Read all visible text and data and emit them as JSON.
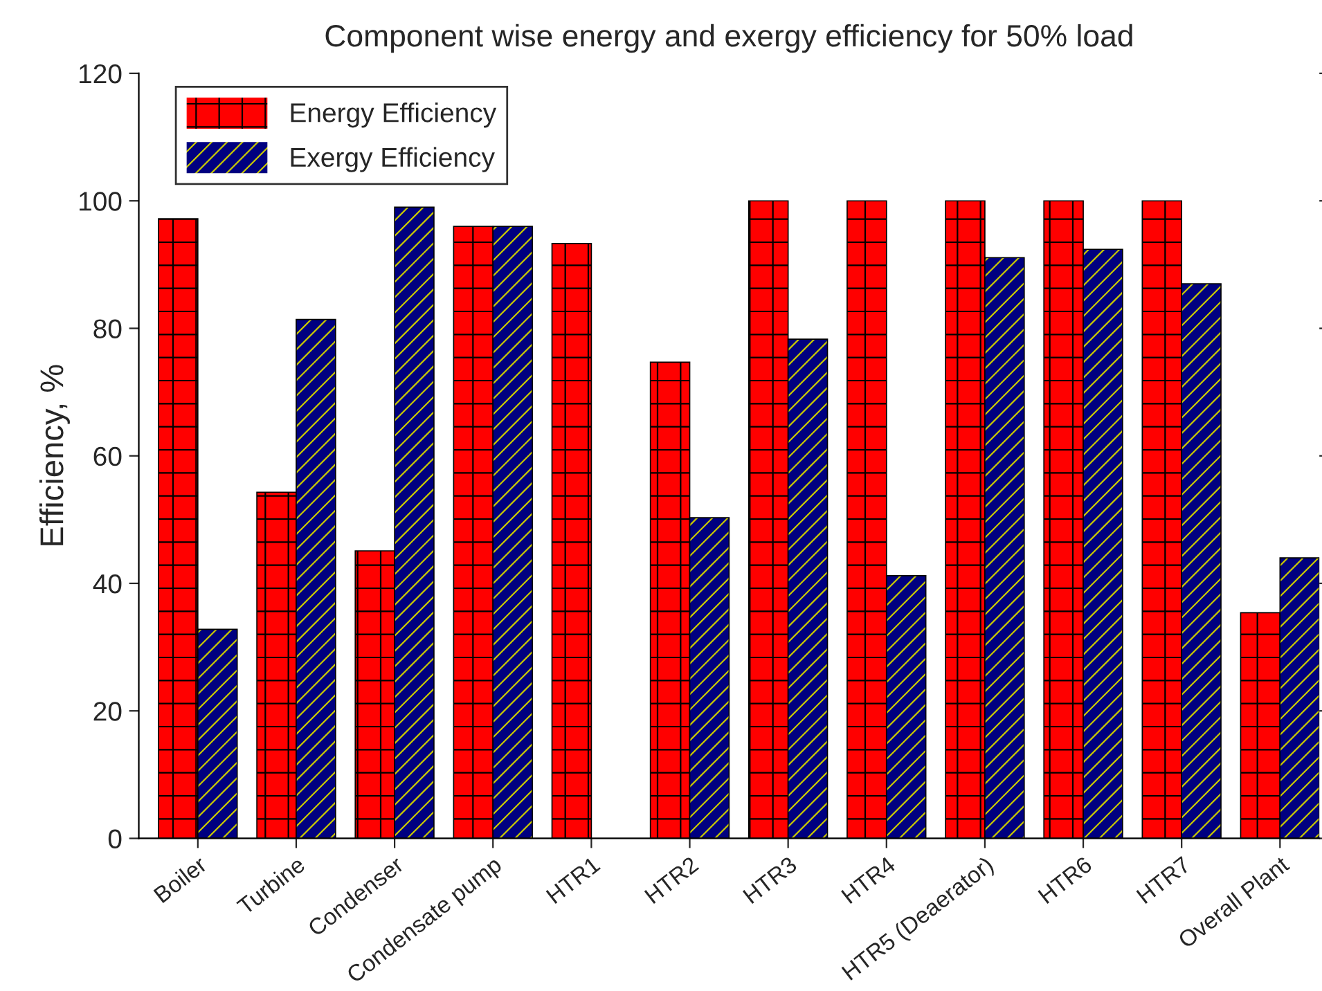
{
  "chart_data": {
    "type": "bar",
    "title": "Component wise energy and exergy efficiency for 50% load",
    "ylabel": "Efficiency, %",
    "categories": [
      "Boiler",
      "Turbine",
      "Condenser",
      "Condensate pump",
      "HTR1",
      "HTR2",
      "HTR3",
      "HTR4",
      "HTR5 (Deaerator)",
      "HTR6",
      "HTR7",
      "Overall Plant"
    ],
    "series": [
      {
        "name": "Energy Efficiency",
        "color": "#ff0000",
        "values": [
          97.2,
          54.3,
          45.1,
          96,
          93.3,
          74.7,
          100,
          100,
          100,
          100,
          100,
          35.4
        ]
      },
      {
        "name": "Exergy Efficiency",
        "color": "#000080",
        "values": [
          32.8,
          81.4,
          99,
          96,
          null,
          50.3,
          78.3,
          41.2,
          91.1,
          92.4,
          87,
          44
        ]
      }
    ],
    "ylim": [
      0,
      120
    ],
    "yticks": [
      0,
      20,
      40,
      60,
      80,
      100,
      120
    ],
    "legend": "top left",
    "grid": false
  }
}
